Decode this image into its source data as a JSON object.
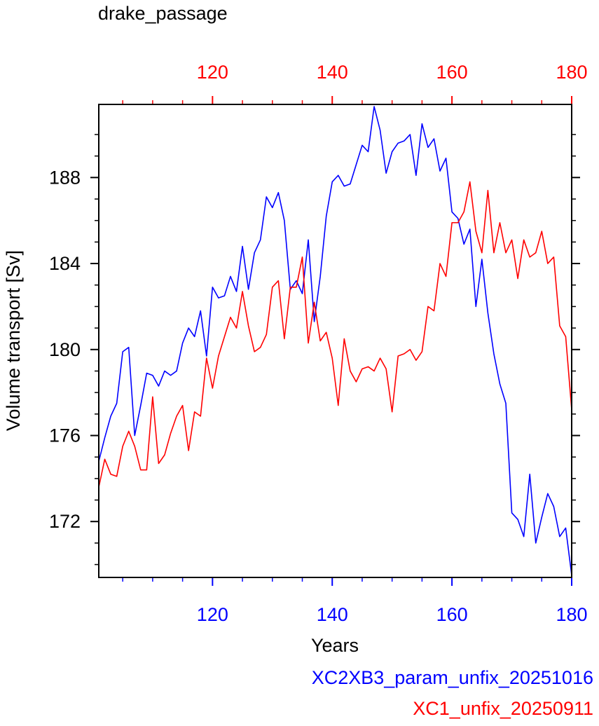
{
  "chart_data": {
    "type": "line",
    "title": "drake_passage",
    "xlabel": "Years",
    "ylabel": "Volume transport [Sv]",
    "xlim": [
      101,
      180
    ],
    "ylim": [
      169.4,
      191.4
    ],
    "y_ticks": [
      172,
      176,
      180,
      184,
      188
    ],
    "x_ticks": [
      120,
      140,
      160,
      180
    ],
    "bottom_axis_color": "#0000ff",
    "top_axis_color": "#ff0000",
    "grid": false,
    "legend_position": "bottom-right",
    "series": [
      {
        "name": "XC2XB3_param_unfix_20251016",
        "color": "#0000ff",
        "x": [
          101,
          102,
          103,
          104,
          105,
          106,
          107,
          108,
          109,
          110,
          111,
          112,
          113,
          114,
          115,
          116,
          117,
          118,
          119,
          120,
          121,
          122,
          123,
          124,
          125,
          126,
          127,
          128,
          129,
          130,
          131,
          132,
          133,
          134,
          135,
          136,
          137,
          138,
          139,
          140,
          141,
          142,
          143,
          144,
          145,
          146,
          147,
          148,
          149,
          150,
          151,
          152,
          153,
          154,
          155,
          156,
          157,
          158,
          159,
          160,
          161,
          162,
          163,
          164,
          165,
          166,
          167,
          168,
          169,
          170,
          171,
          172,
          173,
          174,
          175,
          176,
          177,
          178,
          179,
          180
        ],
        "y": [
          174.8,
          175.9,
          176.9,
          177.5,
          179.9,
          180.1,
          176.0,
          177.4,
          178.9,
          178.8,
          178.3,
          179.0,
          178.8,
          179.0,
          180.3,
          181.0,
          180.6,
          181.8,
          179.7,
          182.9,
          182.4,
          182.5,
          183.4,
          182.7,
          184.8,
          182.8,
          184.5,
          185.1,
          187.1,
          186.6,
          187.3,
          186.0,
          182.8,
          183.2,
          182.6,
          185.1,
          181.3,
          183.4,
          186.2,
          187.8,
          188.1,
          187.6,
          187.7,
          188.6,
          189.5,
          189.2,
          191.3,
          190.2,
          188.2,
          189.2,
          189.6,
          189.7,
          190.0,
          188.1,
          190.5,
          189.4,
          189.8,
          188.3,
          188.9,
          186.4,
          186.1,
          184.9,
          185.6,
          182.0,
          184.2,
          181.7,
          179.8,
          178.4,
          177.5,
          172.4,
          172.1,
          171.3,
          174.2,
          171.0,
          172.2,
          173.3,
          172.7,
          171.3,
          171.7,
          169.5
        ]
      },
      {
        "name": "XC1_unfix_20250911",
        "color": "#ff0000",
        "x": [
          101,
          102,
          103,
          104,
          105,
          106,
          107,
          108,
          109,
          110,
          111,
          112,
          113,
          114,
          115,
          116,
          117,
          118,
          119,
          120,
          121,
          122,
          123,
          124,
          125,
          126,
          127,
          128,
          129,
          130,
          131,
          132,
          133,
          134,
          135,
          136,
          137,
          138,
          139,
          140,
          141,
          142,
          143,
          144,
          145,
          146,
          147,
          148,
          149,
          150,
          151,
          152,
          153,
          154,
          155,
          156,
          157,
          158,
          159,
          160,
          161,
          162,
          163,
          164,
          165,
          166,
          167,
          168,
          169,
          170,
          171,
          172,
          173,
          174,
          175,
          176,
          177,
          178,
          179,
          180
        ],
        "y": [
          173.6,
          174.9,
          174.2,
          174.1,
          175.5,
          176.2,
          175.5,
          174.4,
          174.4,
          177.8,
          174.7,
          175.1,
          176.1,
          176.9,
          177.4,
          175.3,
          177.1,
          176.9,
          179.6,
          178.2,
          179.7,
          180.6,
          181.5,
          181.0,
          182.7,
          181.1,
          179.9,
          180.1,
          180.7,
          182.9,
          183.2,
          180.5,
          182.9,
          182.9,
          184.3,
          180.3,
          182.2,
          180.4,
          180.8,
          179.6,
          177.4,
          180.5,
          179.0,
          178.5,
          179.1,
          179.2,
          179.0,
          179.6,
          179.1,
          177.1,
          179.7,
          179.8,
          180.0,
          179.5,
          179.9,
          182.0,
          181.8,
          184.0,
          183.4,
          185.9,
          185.9,
          186.4,
          187.8,
          185.5,
          184.5,
          187.4,
          184.5,
          185.9,
          184.5,
          185.1,
          183.3,
          185.1,
          184.3,
          184.5,
          185.5,
          184.0,
          184.3,
          181.1,
          180.6,
          177.2
        ]
      }
    ]
  }
}
